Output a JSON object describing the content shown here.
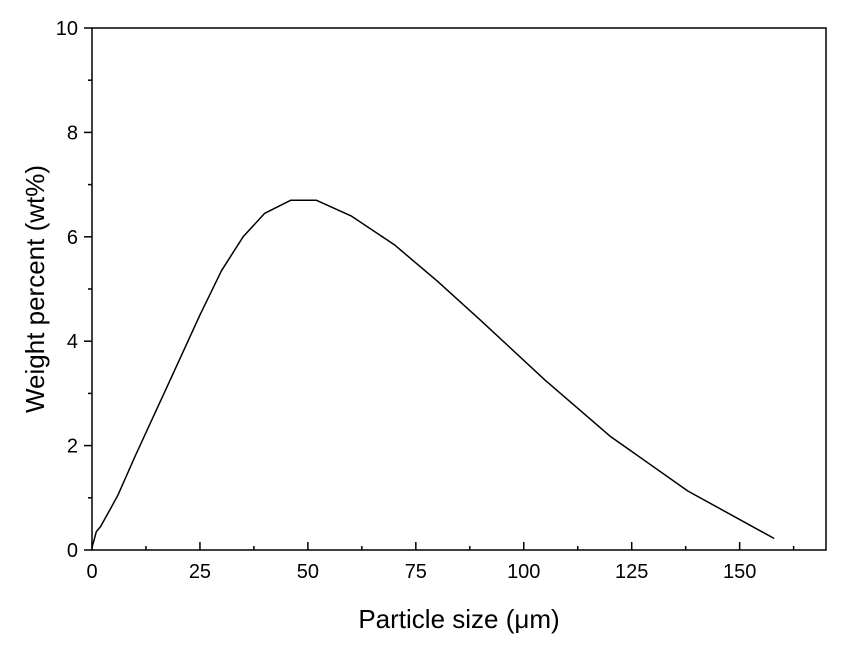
{
  "chart_data": {
    "type": "line",
    "xlabel": "Particle size (μm)",
    "ylabel": "Weight percent (wt%)",
    "xlim": [
      0,
      170
    ],
    "ylim": [
      0,
      10
    ],
    "x_ticks": [
      0,
      25,
      50,
      75,
      100,
      125,
      150
    ],
    "y_ticks": [
      0,
      2,
      4,
      6,
      8,
      10
    ],
    "grid": false,
    "line_color": "#000000",
    "series": [
      {
        "x": [
          0,
          0.5,
          1,
          2,
          4,
          6,
          10,
          15,
          20,
          25,
          30,
          35,
          40,
          46,
          52,
          60,
          70,
          80,
          90,
          105,
          120,
          138,
          158
        ],
        "y": [
          0.05,
          0.2,
          0.35,
          0.45,
          0.75,
          1.05,
          1.8,
          2.7,
          3.6,
          4.5,
          5.35,
          6.0,
          6.45,
          6.7,
          6.7,
          6.4,
          5.85,
          5.15,
          4.4,
          3.25,
          2.18,
          1.13,
          0.22
        ]
      }
    ]
  }
}
